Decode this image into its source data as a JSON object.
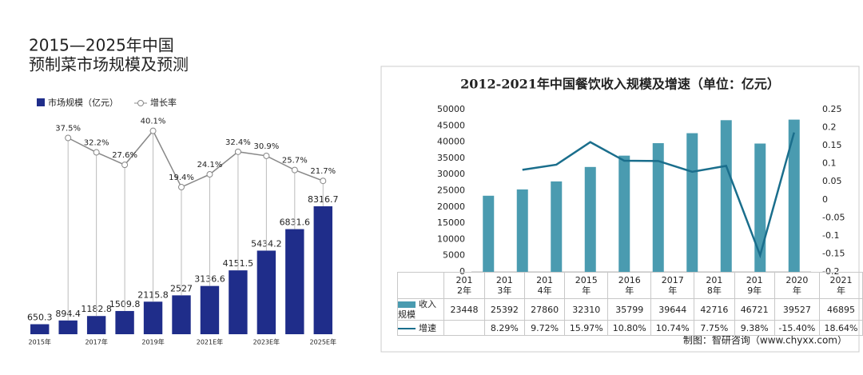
{
  "chart_data": [
    {
      "type": "combo",
      "title": [
        "2015—2025年中国",
        "预制菜市场规模及预测"
      ],
      "categories": [
        "2015年",
        null,
        "2017年",
        null,
        "2019年",
        null,
        "2021E年",
        null,
        "2023E年",
        null,
        "2025E年"
      ],
      "series": [
        {
          "name": "市场规模（亿元）",
          "color": "#1f2d8a",
          "values": [
            650.3,
            894.4,
            1182.8,
            1509.8,
            2115.8,
            2527,
            3136.6,
            4151.5,
            5434.2,
            6831.6,
            8316.7
          ]
        },
        {
          "name": "增长率",
          "color": "#888888",
          "values": [
            null,
            37.5,
            32.2,
            27.6,
            40.1,
            19.4,
            24.1,
            32.4,
            30.9,
            25.7,
            21.7
          ],
          "value_labels": [
            null,
            "37.5%",
            "32.2%",
            "27.6%",
            "40.1%",
            "19.4%",
            "24.1%",
            "32.4%",
            "30.9%",
            "25.7%",
            "21.7%"
          ]
        }
      ]
    },
    {
      "type": "combo_table",
      "title": "2012-2021年中国餐饮收入规模及增速（单位：亿元）",
      "categories": [
        "2012年",
        "2013年",
        "2014年",
        "2015年",
        "2016年",
        "2017年",
        "2018年",
        "2019年",
        "2020年",
        "2021年"
      ],
      "series": [
        {
          "name": "收入规模",
          "color": "#4a9bb0",
          "values": [
            23448,
            25392,
            27860,
            32310,
            35799,
            39644,
            42716,
            46721,
            39527,
            46895
          ]
        },
        {
          "name": "增速",
          "color": "#1a6e8c",
          "axis": "y2",
          "values": [
            null,
            0.0829,
            0.0972,
            0.1597,
            0.108,
            0.1074,
            0.0775,
            0.0938,
            -0.154,
            0.1864
          ],
          "value_labels": [
            null,
            "8.29%",
            "9.72%",
            "15.97%",
            "10.80%",
            "10.74%",
            "7.75%",
            "9.38%",
            "-15.40%",
            "18.64%"
          ]
        }
      ],
      "ylim": [
        0,
        50000
      ],
      "yticks": [
        0,
        5000,
        10000,
        15000,
        20000,
        25000,
        30000,
        35000,
        40000,
        45000,
        50000
      ],
      "y2lim": [
        -0.2,
        0.25
      ],
      "y2ticks": [
        -0.2,
        -0.15,
        -0.1,
        -0.05,
        0,
        0.05,
        0.1,
        0.15,
        0.2,
        0.25
      ],
      "source": "制图：智研咨询（www.chyxx.com）"
    }
  ]
}
